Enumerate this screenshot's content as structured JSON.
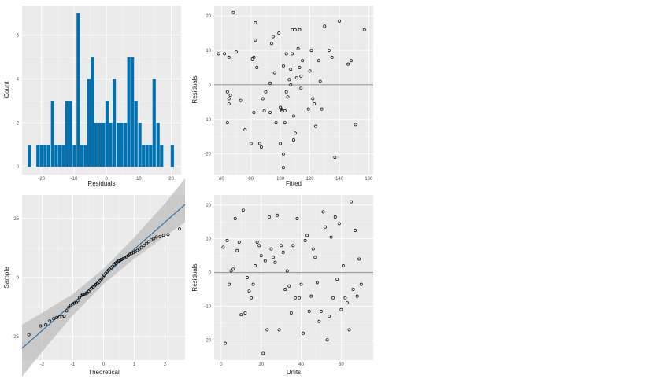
{
  "chart_data": [
    {
      "type": "bar",
      "xlabel": "Residuals",
      "ylabel": "Count",
      "xlim": [
        -26,
        23
      ],
      "ylim": [
        -0.35,
        7.35
      ],
      "xticks": [
        -20,
        -10,
        0,
        10,
        20
      ],
      "yticks": [
        0,
        2,
        4,
        6
      ],
      "bin_width": 1.3,
      "bins": [
        {
          "x": -23.7,
          "count": 1
        },
        {
          "x": -21.1,
          "count": 1
        },
        {
          "x": -20.0,
          "count": 1
        },
        {
          "x": -18.9,
          "count": 1
        },
        {
          "x": -17.8,
          "count": 1
        },
        {
          "x": -16.6,
          "count": 3
        },
        {
          "x": -15.5,
          "count": 1
        },
        {
          "x": -14.4,
          "count": 1
        },
        {
          "x": -13.3,
          "count": 1
        },
        {
          "x": -12.2,
          "count": 3
        },
        {
          "x": -11.1,
          "count": 3
        },
        {
          "x": -9.9,
          "count": 1
        },
        {
          "x": -8.7,
          "count": 7
        },
        {
          "x": -7.6,
          "count": 1
        },
        {
          "x": -6.5,
          "count": 1
        },
        {
          "x": -5.4,
          "count": 4
        },
        {
          "x": -4.3,
          "count": 5
        },
        {
          "x": -3.2,
          "count": 2
        },
        {
          "x": -2.0,
          "count": 2
        },
        {
          "x": -0.9,
          "count": 2
        },
        {
          "x": 0.2,
          "count": 3
        },
        {
          "x": 1.3,
          "count": 2
        },
        {
          "x": 2.4,
          "count": 4
        },
        {
          "x": 3.6,
          "count": 2
        },
        {
          "x": 4.7,
          "count": 2
        },
        {
          "x": 5.8,
          "count": 2
        },
        {
          "x": 6.9,
          "count": 5
        },
        {
          "x": 8.0,
          "count": 5
        },
        {
          "x": 9.1,
          "count": 3
        },
        {
          "x": 10.3,
          "count": 2
        },
        {
          "x": 11.4,
          "count": 1
        },
        {
          "x": 12.5,
          "count": 1
        },
        {
          "x": 13.6,
          "count": 1
        },
        {
          "x": 14.7,
          "count": 4
        },
        {
          "x": 15.9,
          "count": 2
        },
        {
          "x": 17.0,
          "count": 1
        },
        {
          "x": 20.3,
          "count": 1
        }
      ],
      "colors": {
        "bar": "#0072b2",
        "panel": "#ebebeb",
        "grid": "#ffffff"
      }
    },
    {
      "type": "scatter",
      "xlabel": "Fitted",
      "ylabel": "Residuals",
      "xlim": [
        55,
        163
      ],
      "ylim": [
        -26,
        23
      ],
      "xticks": [
        60,
        80,
        100,
        120,
        140,
        160
      ],
      "yticks": [
        -20,
        -10,
        0,
        10,
        20
      ],
      "hline": 0,
      "points": [
        [
          58,
          9
        ],
        [
          62,
          9
        ],
        [
          64,
          -2
        ],
        [
          65,
          -4
        ],
        [
          64,
          -11
        ],
        [
          66,
          -3
        ],
        [
          65,
          -5.5
        ],
        [
          65,
          8
        ],
        [
          68,
          21
        ],
        [
          70,
          9.5
        ],
        [
          73,
          -4.5
        ],
        [
          76,
          -13
        ],
        [
          80,
          -17
        ],
        [
          81,
          7.5
        ],
        [
          82,
          8
        ],
        [
          82,
          -8
        ],
        [
          83,
          13
        ],
        [
          83,
          18
        ],
        [
          84,
          5
        ],
        [
          86,
          -17
        ],
        [
          87,
          -18
        ],
        [
          88,
          -4
        ],
        [
          89,
          -7.5
        ],
        [
          90,
          -2
        ],
        [
          93,
          0.5
        ],
        [
          93,
          -8
        ],
        [
          94,
          12
        ],
        [
          95,
          14
        ],
        [
          96,
          3.5
        ],
        [
          97,
          -11
        ],
        [
          99,
          15
        ],
        [
          100,
          -17
        ],
        [
          100,
          -6.5
        ],
        [
          101,
          -7.5
        ],
        [
          101,
          -7
        ],
        [
          102,
          -20
        ],
        [
          102,
          -24
        ],
        [
          102,
          5.5
        ],
        [
          103,
          -7.5
        ],
        [
          103,
          -11
        ],
        [
          104,
          -2
        ],
        [
          104,
          9
        ],
        [
          105,
          -3.5
        ],
        [
          106,
          1.5
        ],
        [
          107,
          0
        ],
        [
          107,
          4.5
        ],
        [
          108,
          16
        ],
        [
          108,
          9
        ],
        [
          109,
          -9
        ],
        [
          109,
          -16
        ],
        [
          110,
          -14
        ],
        [
          110,
          16
        ],
        [
          111,
          2
        ],
        [
          112,
          10.5
        ],
        [
          113,
          5
        ],
        [
          113,
          16
        ],
        [
          114,
          -1
        ],
        [
          114,
          2.5
        ],
        [
          115,
          7
        ],
        [
          119,
          -7
        ],
        [
          120,
          4
        ],
        [
          121,
          10
        ],
        [
          122,
          -4
        ],
        [
          123,
          -5.5
        ],
        [
          124,
          -12
        ],
        [
          126,
          7
        ],
        [
          127,
          1
        ],
        [
          128,
          -7
        ],
        [
          130,
          17
        ],
        [
          133,
          10
        ],
        [
          135,
          8
        ],
        [
          137,
          -21
        ],
        [
          140,
          18.5
        ],
        [
          146,
          6
        ],
        [
          148,
          7
        ],
        [
          151,
          -11.5
        ],
        [
          157,
          16
        ]
      ],
      "colors": {
        "point": "#000000",
        "hline": "#8c8c8c"
      }
    },
    {
      "type": "scatter",
      "xlabel": "Theoretical",
      "ylabel": "Sample",
      "xlim": [
        -2.65,
        2.65
      ],
      "ylim": [
        -35,
        35
      ],
      "xticks": [
        -2,
        -1,
        0,
        1,
        2
      ],
      "yticks": [
        -25,
        0,
        25
      ],
      "reference_line": {
        "intercept": 0.5,
        "slope": 11.5
      },
      "confidence_band": [
        [
          -2.65,
          -42,
          -20
        ],
        [
          -2.0,
          -31.5,
          -15
        ],
        [
          -1.0,
          -16,
          -7
        ],
        [
          0.0,
          -2.7,
          3.7
        ],
        [
          1.0,
          8,
          17
        ],
        [
          2.0,
          17.5,
          31.5
        ],
        [
          2.65,
          23.5,
          42
        ]
      ],
      "points": [
        [
          -2.43,
          -24.2
        ],
        [
          -2.05,
          -20.5
        ],
        [
          -1.88,
          -20.0
        ],
        [
          -1.75,
          -18.4
        ],
        [
          -1.62,
          -17.4
        ],
        [
          -1.52,
          -16.9
        ],
        [
          -1.43,
          -16.7
        ],
        [
          -1.35,
          -16.6
        ],
        [
          -1.28,
          -16.3
        ],
        [
          -1.2,
          -14.1
        ],
        [
          -1.13,
          -12.6
        ],
        [
          -1.07,
          -11.8
        ],
        [
          -1.0,
          -11.2
        ],
        [
          -0.95,
          -10.8
        ],
        [
          -0.89,
          -10.7
        ],
        [
          -0.84,
          -9.8
        ],
        [
          -0.78,
          -8.5
        ],
        [
          -0.73,
          -7.6
        ],
        [
          -0.68,
          -7.2
        ],
        [
          -0.63,
          -7.0
        ],
        [
          -0.58,
          -6.8
        ],
        [
          -0.53,
          -6.5
        ],
        [
          -0.48,
          -5.8
        ],
        [
          -0.44,
          -5.1
        ],
        [
          -0.39,
          -4.5
        ],
        [
          -0.34,
          -4.1
        ],
        [
          -0.29,
          -3.5
        ],
        [
          -0.25,
          -3.0
        ],
        [
          -0.2,
          -2.5
        ],
        [
          -0.15,
          -2.0
        ],
        [
          -0.11,
          -1.2
        ],
        [
          -0.06,
          -0.6
        ],
        [
          -0.02,
          0.2
        ],
        [
          0.02,
          1.0
        ],
        [
          0.07,
          1.8
        ],
        [
          0.11,
          2.4
        ],
        [
          0.16,
          3.1
        ],
        [
          0.2,
          3.6
        ],
        [
          0.25,
          4.2
        ],
        [
          0.3,
          4.8
        ],
        [
          0.35,
          5.5
        ],
        [
          0.39,
          6.1
        ],
        [
          0.44,
          6.6
        ],
        [
          0.49,
          7.0
        ],
        [
          0.54,
          7.3
        ],
        [
          0.59,
          7.7
        ],
        [
          0.64,
          8.0
        ],
        [
          0.69,
          8.3
        ],
        [
          0.75,
          8.8
        ],
        [
          0.8,
          9.3
        ],
        [
          0.86,
          9.9
        ],
        [
          0.91,
          10.2
        ],
        [
          0.97,
          10.6
        ],
        [
          1.03,
          11.0
        ],
        [
          1.1,
          11.5
        ],
        [
          1.16,
          12.1
        ],
        [
          1.23,
          12.8
        ],
        [
          1.31,
          13.6
        ],
        [
          1.39,
          14.4
        ],
        [
          1.47,
          15.2
        ],
        [
          1.55,
          15.9
        ],
        [
          1.63,
          16.5
        ],
        [
          1.72,
          17.2
        ],
        [
          1.84,
          17.4
        ],
        [
          1.95,
          17.9
        ],
        [
          2.1,
          18.2
        ],
        [
          2.47,
          20.6
        ]
      ],
      "colors": {
        "point": "#000000",
        "line": "#2b6ca3",
        "band": "#bdbdbd"
      }
    },
    {
      "type": "scatter",
      "xlabel": "Units",
      "ylabel": "Residuals",
      "xlim": [
        -3.5,
        76
      ],
      "ylim": [
        -26,
        23
      ],
      "xticks": [
        0,
        20,
        40,
        60
      ],
      "yticks": [
        -20,
        -10,
        0,
        10,
        20
      ],
      "hline": 0,
      "points": [
        [
          1,
          7.5
        ],
        [
          2,
          -21
        ],
        [
          3,
          9.5
        ],
        [
          4,
          -3.5
        ],
        [
          5,
          0.5
        ],
        [
          6,
          1
        ],
        [
          7,
          16
        ],
        [
          8,
          6.5
        ],
        [
          9,
          9
        ],
        [
          10,
          -12.5
        ],
        [
          11,
          18.5
        ],
        [
          12,
          -12
        ],
        [
          13,
          -1.5
        ],
        [
          14,
          -5.5
        ],
        [
          15,
          -7.5
        ],
        [
          16,
          -3.5
        ],
        [
          17,
          2
        ],
        [
          18,
          9
        ],
        [
          19,
          8
        ],
        [
          20,
          5
        ],
        [
          21,
          -24
        ],
        [
          22,
          3.5
        ],
        [
          23,
          -17
        ],
        [
          24,
          16.5
        ],
        [
          25,
          7
        ],
        [
          26,
          4.5
        ],
        [
          27,
          3
        ],
        [
          28,
          17
        ],
        [
          29,
          -17
        ],
        [
          30,
          8
        ],
        [
          31,
          6
        ],
        [
          32,
          -5
        ],
        [
          33,
          0.5
        ],
        [
          34,
          -4
        ],
        [
          35,
          -12
        ],
        [
          36,
          8
        ],
        [
          37,
          -7.5
        ],
        [
          38,
          16
        ],
        [
          39,
          -7.5
        ],
        [
          40,
          -3.5
        ],
        [
          41,
          -18
        ],
        [
          42,
          9.5
        ],
        [
          43,
          11
        ],
        [
          44,
          -11.5
        ],
        [
          45,
          -7
        ],
        [
          46,
          7
        ],
        [
          47,
          4.5
        ],
        [
          48,
          -3
        ],
        [
          49,
          -14.5
        ],
        [
          50,
          -11.5
        ],
        [
          51,
          18
        ],
        [
          52,
          13.5
        ],
        [
          53,
          -20
        ],
        [
          54,
          -13
        ],
        [
          55,
          10.5
        ],
        [
          56,
          -7.5
        ],
        [
          57,
          16.5
        ],
        [
          58,
          -2
        ],
        [
          59,
          14.5
        ],
        [
          60,
          -11
        ],
        [
          61,
          2
        ],
        [
          62,
          -7.5
        ],
        [
          63,
          -9
        ],
        [
          64,
          -17
        ],
        [
          65,
          21
        ],
        [
          66,
          -5
        ],
        [
          67,
          12.5
        ],
        [
          68,
          -7
        ],
        [
          69,
          4
        ],
        [
          70,
          -3.5
        ]
      ],
      "colors": {
        "point": "#000000",
        "hline": "#8c8c8c"
      }
    }
  ]
}
